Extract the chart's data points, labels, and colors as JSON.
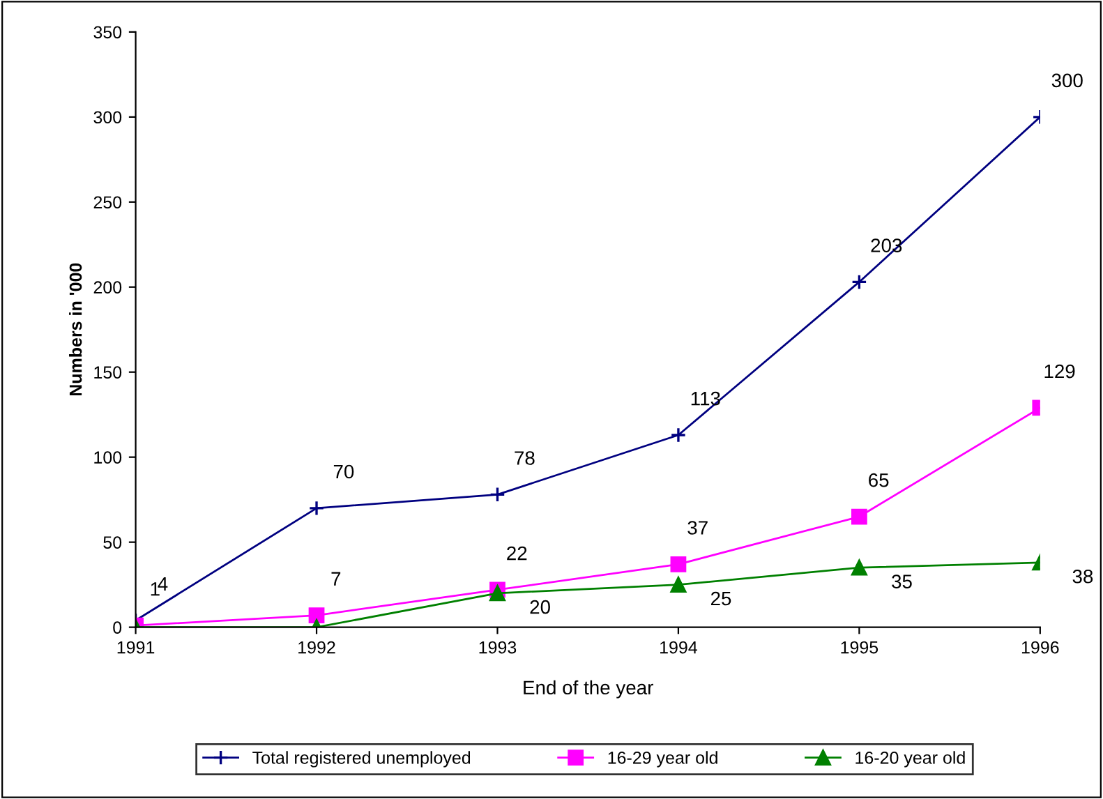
{
  "chart_data": {
    "type": "line",
    "xlabel": "End of the year",
    "ylabel": "Numbers in '000",
    "categories": [
      "1991",
      "1992",
      "1993",
      "1994",
      "1995",
      "1996"
    ],
    "ylim": [
      0,
      350
    ],
    "yticks": [
      0,
      50,
      100,
      150,
      200,
      250,
      300,
      350
    ],
    "grid": false,
    "legend": "bottom",
    "series": [
      {
        "name": "Total registered unemployed",
        "color": "#000080",
        "marker": "cross",
        "values": [
          4,
          70,
          78,
          113,
          203,
          300
        ],
        "value_labels": [
          "4",
          "70",
          "78",
          "113",
          "203",
          "300"
        ]
      },
      {
        "name": "16-29 year old",
        "color": "#ff00ff",
        "marker": "square",
        "values": [
          1,
          7,
          22,
          37,
          65,
          129
        ],
        "value_labels": [
          "1",
          "7",
          "22",
          "37",
          "65",
          "129"
        ]
      },
      {
        "name": "16-20 year old",
        "color": "#008000",
        "marker": "triangle",
        "values": [
          0,
          0,
          20,
          25,
          35,
          38
        ],
        "value_labels": [
          null,
          null,
          "20",
          "25",
          "35",
          "38"
        ]
      }
    ]
  }
}
